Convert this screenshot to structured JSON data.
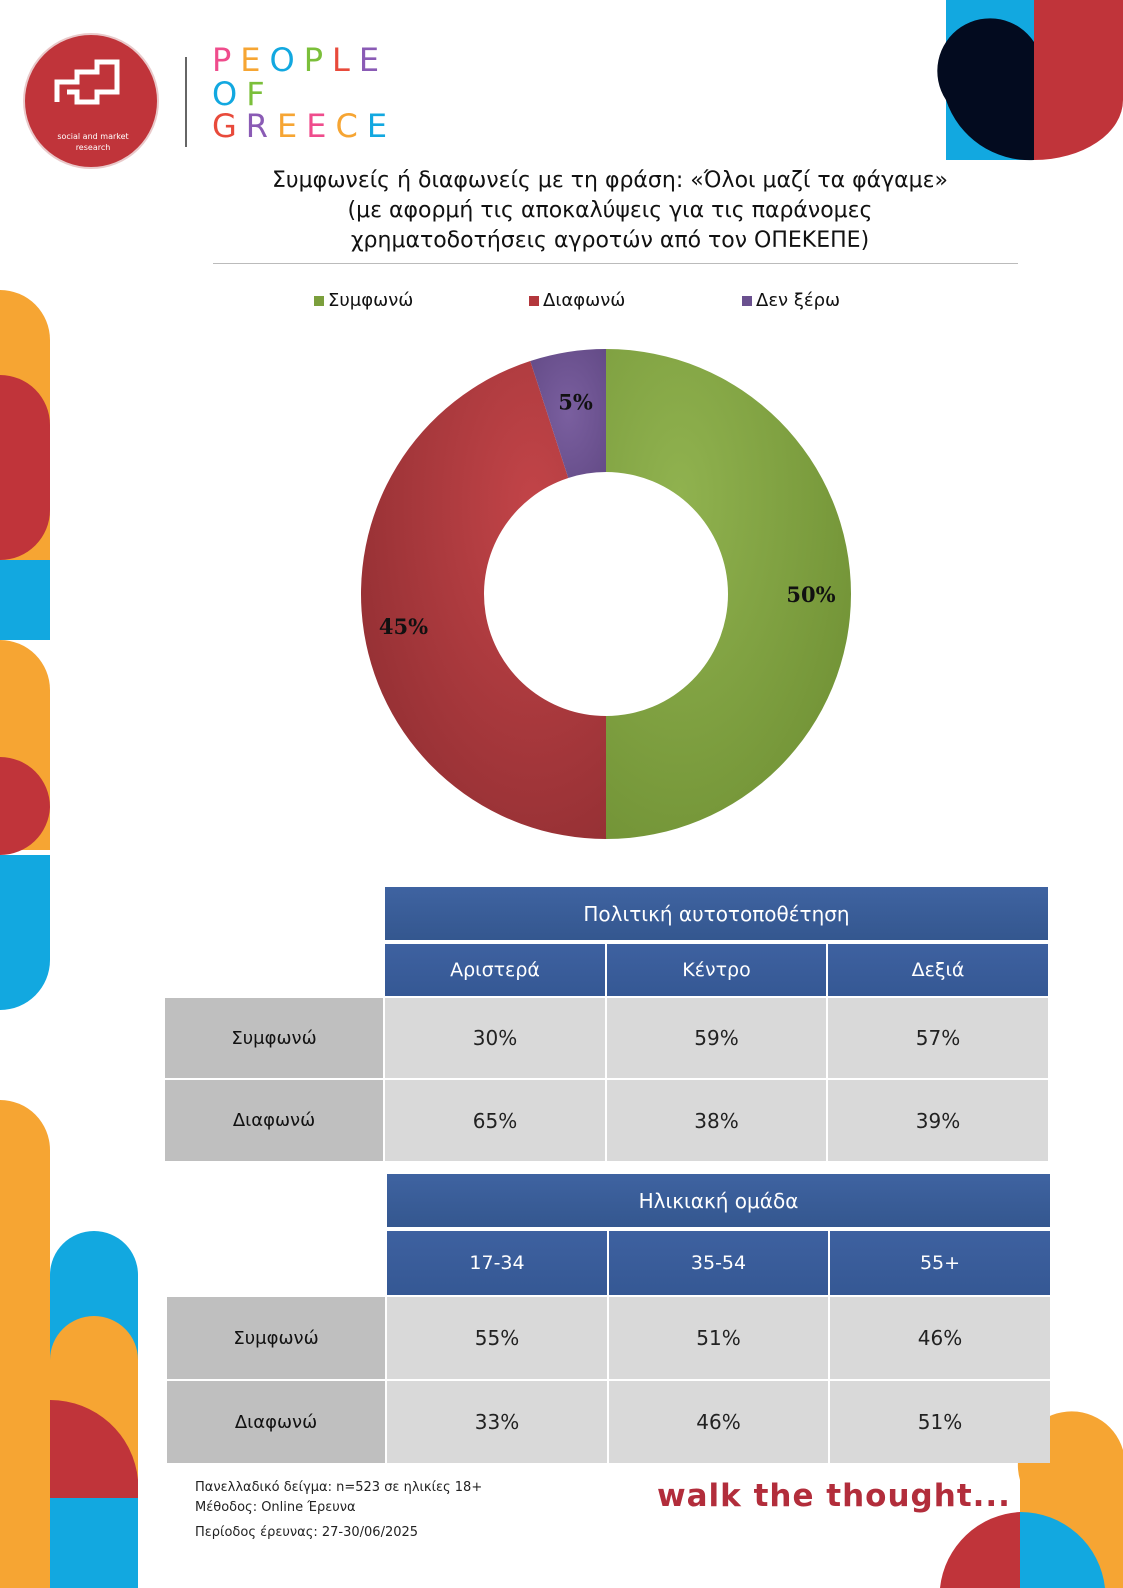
{
  "brand": {
    "logo_text": "social and market research",
    "words": [
      "PEOPLE",
      "OF",
      "GREECE"
    ],
    "tagline": "walk the thought..."
  },
  "title": {
    "line1": "Συμφωνείς ή διαφωνείς με τη φράση: «Όλοι μαζί τα φάγαμε»",
    "line2": "(με αφορμή τις αποκαλύψεις για τις παράνομες",
    "line3": "χρηματοδοτήσεις αγροτών από τον ΟΠΕΚΕΠΕ)"
  },
  "chart_data": {
    "type": "pie",
    "donut": true,
    "categories": [
      "Συμφωνώ",
      "Διαφωνώ",
      "Δεν ξέρω"
    ],
    "values": [
      50,
      45,
      5
    ],
    "labels": [
      "50%",
      "45%",
      "5%"
    ],
    "colors": [
      "#7b9f3c",
      "#b3373c",
      "#6a508f"
    ],
    "legend_position": "top"
  },
  "tables": [
    {
      "header": "Πολιτική αυτοτοποθέτηση",
      "columns": [
        "Αριστερά",
        "Κέντρο",
        "Δεξιά"
      ],
      "rows": [
        {
          "label": "Συμφωνώ",
          "values": [
            "30%",
            "59%",
            "57%"
          ]
        },
        {
          "label": "Διαφωνώ",
          "values": [
            "65%",
            "38%",
            "39%"
          ]
        }
      ]
    },
    {
      "header": "Ηλικιακή ομάδα",
      "columns": [
        "17-34",
        "35-54",
        "55+"
      ],
      "rows": [
        {
          "label": "Συμφωνώ",
          "values": [
            "55%",
            "51%",
            "46%"
          ]
        },
        {
          "label": "Διαφωνώ",
          "values": [
            "33%",
            "46%",
            "51%"
          ]
        }
      ]
    }
  ],
  "footer": {
    "sample": "Πανελλαδικό δείγμα: n=523 σε ηλικίες 18+",
    "method": "Μέθοδος: Online Έρευνα",
    "period": "Περίοδος έρευνας: 27-30/06/2025"
  },
  "colors": {
    "orange": "#f6a533",
    "red": "#c0343a",
    "blue": "#12a8e0",
    "navy": "#030b1f",
    "table_header": "#3a5d9c",
    "row_label_bg": "#bfbfbf",
    "cell_bg": "#d9d9d9"
  }
}
